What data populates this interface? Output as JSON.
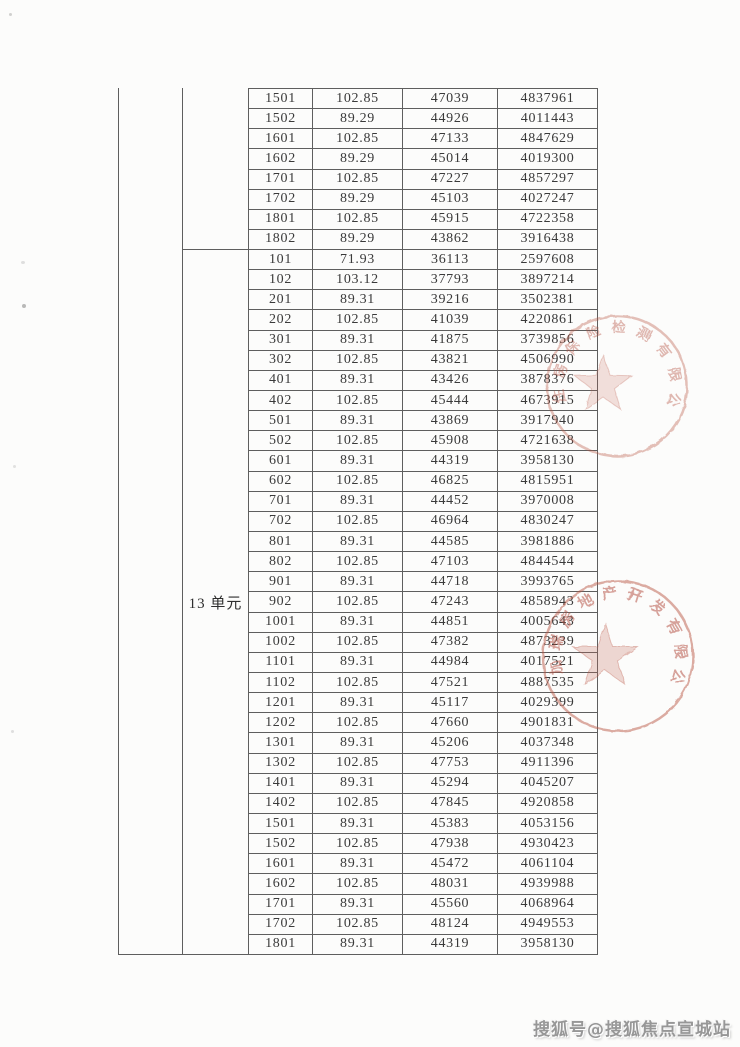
{
  "page": {
    "background": "#fcfcfb"
  },
  "table": {
    "sections": [
      {
        "unit_label": "",
        "rows": [
          [
            "1501",
            "102.85",
            "47039",
            "4837961"
          ],
          [
            "1502",
            "89.29",
            "44926",
            "4011443"
          ],
          [
            "1601",
            "102.85",
            "47133",
            "4847629"
          ],
          [
            "1602",
            "89.29",
            "45014",
            "4019300"
          ],
          [
            "1701",
            "102.85",
            "47227",
            "4857297"
          ],
          [
            "1702",
            "89.29",
            "45103",
            "4027247"
          ],
          [
            "1801",
            "102.85",
            "45915",
            "4722358"
          ],
          [
            "1802",
            "89.29",
            "43862",
            "3916438"
          ]
        ]
      },
      {
        "unit_label": "13 单元",
        "rows": [
          [
            "101",
            "71.93",
            "36113",
            "2597608"
          ],
          [
            "102",
            "103.12",
            "37793",
            "3897214"
          ],
          [
            "201",
            "89.31",
            "39216",
            "3502381"
          ],
          [
            "202",
            "102.85",
            "41039",
            "4220861"
          ],
          [
            "301",
            "89.31",
            "41875",
            "3739856"
          ],
          [
            "302",
            "102.85",
            "43821",
            "4506990"
          ],
          [
            "401",
            "89.31",
            "43426",
            "3878376"
          ],
          [
            "402",
            "102.85",
            "45444",
            "4673915"
          ],
          [
            "501",
            "89.31",
            "43869",
            "3917940"
          ],
          [
            "502",
            "102.85",
            "45908",
            "4721638"
          ],
          [
            "601",
            "89.31",
            "44319",
            "3958130"
          ],
          [
            "602",
            "102.85",
            "46825",
            "4815951"
          ],
          [
            "701",
            "89.31",
            "44452",
            "3970008"
          ],
          [
            "702",
            "102.85",
            "46964",
            "4830247"
          ],
          [
            "801",
            "89.31",
            "44585",
            "3981886"
          ],
          [
            "802",
            "102.85",
            "47103",
            "4844544"
          ],
          [
            "901",
            "89.31",
            "44718",
            "3993765"
          ],
          [
            "902",
            "102.85",
            "47243",
            "4858943"
          ],
          [
            "1001",
            "89.31",
            "44851",
            "4005643"
          ],
          [
            "1002",
            "102.85",
            "47382",
            "4873239"
          ],
          [
            "1101",
            "89.31",
            "44984",
            "4017521"
          ],
          [
            "1102",
            "102.85",
            "47521",
            "4887535"
          ],
          [
            "1201",
            "89.31",
            "45117",
            "4029399"
          ],
          [
            "1202",
            "102.85",
            "47660",
            "4901831"
          ],
          [
            "1301",
            "89.31",
            "45206",
            "4037348"
          ],
          [
            "1302",
            "102.85",
            "47753",
            "4911396"
          ],
          [
            "1401",
            "89.31",
            "45294",
            "4045207"
          ],
          [
            "1402",
            "102.85",
            "47845",
            "4920858"
          ],
          [
            "1501",
            "89.31",
            "45383",
            "4053156"
          ],
          [
            "1502",
            "102.85",
            "47938",
            "4930423"
          ],
          [
            "1601",
            "89.31",
            "45472",
            "4061104"
          ],
          [
            "1602",
            "102.85",
            "48031",
            "4939988"
          ],
          [
            "1701",
            "89.31",
            "45560",
            "4068964"
          ],
          [
            "1702",
            "102.85",
            "48124",
            "4949553"
          ],
          [
            "1801",
            "89.31",
            "44319",
            "3958130"
          ]
        ]
      }
    ]
  },
  "stamps": [
    {
      "arc_text": "住房保险检测有限公司",
      "color": "#b85948"
    },
    {
      "arc_text": "加瑞房地产开发有限公司",
      "color": "#b85948"
    }
  ],
  "watermark": {
    "text": "搜狐号@搜狐焦点宣城站",
    "color": "#979797"
  }
}
